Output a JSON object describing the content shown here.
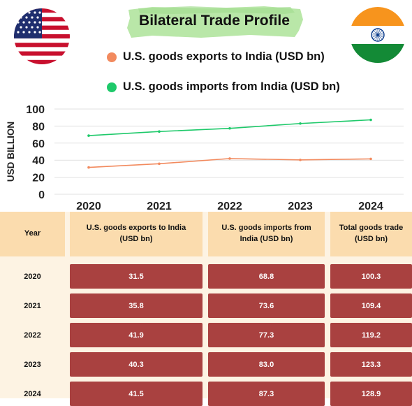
{
  "title": "Bilateral Trade Profile",
  "legend": [
    {
      "label": "U.S. goods exports to India (USD bn)",
      "color": "#f28a5e"
    },
    {
      "label": "U.S. goods imports from India (USD bn)",
      "color": "#1ec96a"
    }
  ],
  "flags": {
    "left": "us-flag",
    "right": "india-flag"
  },
  "colors": {
    "title_brush": "#b9e7a8",
    "header_bg": "#fbdcae",
    "row_bg": "#fdf3e3",
    "value_bg": "#a94140"
  },
  "chart_data": {
    "type": "line",
    "x": [
      "2020",
      "2021",
      "2022",
      "2023",
      "2024"
    ],
    "series": [
      {
        "name": "U.S. goods exports to India (USD bn)",
        "color": "#f28a5e",
        "values": [
          31.5,
          35.8,
          41.9,
          40.3,
          41.5
        ]
      },
      {
        "name": "U.S. goods imports from India (USD bn)",
        "color": "#1ec96a",
        "values": [
          68.8,
          73.6,
          77.3,
          83.0,
          87.3
        ]
      }
    ],
    "ylabel": "USD BILLION",
    "xlabel": "",
    "ylim": [
      0,
      100
    ],
    "yticks": [
      0,
      20,
      40,
      60,
      80,
      100
    ],
    "grid": true,
    "legend_position": "top"
  },
  "table": {
    "headers": [
      "Year",
      "U.S. goods exports to India (USD bn)",
      "U.S. goods imports from India (USD bn)",
      "Total goods trade (USD bn)"
    ],
    "rows": [
      [
        "2020",
        "31.5",
        "68.8",
        "100.3"
      ],
      [
        "2021",
        "35.8",
        "73.6",
        "109.4"
      ],
      [
        "2022",
        "41.9",
        "77.3",
        "119.2"
      ],
      [
        "2023",
        "40.3",
        "83.0",
        "123.3"
      ],
      [
        "2024",
        "41.5",
        "87.3",
        "128.9"
      ]
    ]
  }
}
